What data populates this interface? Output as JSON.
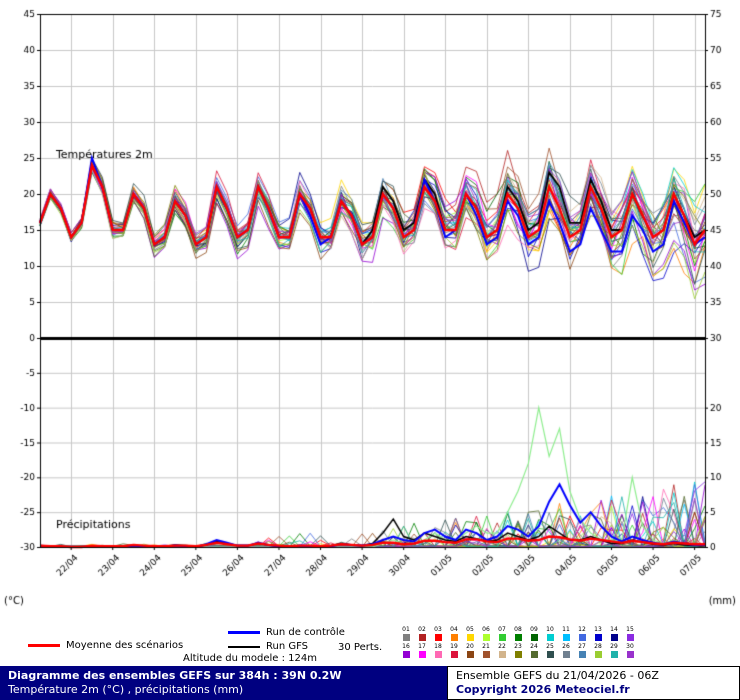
{
  "chart_data": {
    "type": "line",
    "panel_titles": {
      "top": "Températures 2m",
      "bottom": "Précipitations"
    },
    "x_dates": [
      "22/04",
      "23/04",
      "24/04",
      "25/04",
      "26/04",
      "27/04",
      "28/04",
      "29/04",
      "30/04",
      "01/05",
      "02/05",
      "03/05",
      "04/05",
      "05/05",
      "06/05",
      "07/05"
    ],
    "step_hours": 6,
    "temp_axis": {
      "unit": "(°C)",
      "left_ticks": [
        0,
        5,
        10,
        15,
        20,
        25,
        30,
        35,
        40,
        45
      ],
      "right_ticks": [
        30,
        35,
        40,
        45,
        50,
        55,
        60,
        65,
        70,
        75
      ],
      "ylim": [
        0,
        45
      ]
    },
    "precip_axis": {
      "unit": "(mm)",
      "left_ticks": [
        -5,
        -10,
        -15,
        -20,
        -25,
        -30
      ],
      "right_ticks": [
        0,
        5,
        10,
        15,
        20
      ],
      "ylim_mm": [
        0,
        30
      ]
    },
    "series": {
      "mean": {
        "label": "Moyenne des scénarios",
        "color": "#ff0000",
        "temp": [
          16,
          20,
          18,
          14,
          16,
          24,
          21,
          15,
          15,
          20,
          18,
          13,
          14,
          19,
          17,
          13,
          14,
          21,
          18,
          14,
          15,
          21,
          18,
          14,
          14,
          20,
          18,
          14,
          14,
          19,
          17,
          13,
          14,
          20,
          18,
          14,
          15,
          21,
          19,
          15,
          15,
          20,
          18,
          14,
          15,
          20,
          18,
          14,
          15,
          21,
          18,
          14,
          15,
          21,
          18,
          14,
          15,
          20,
          17,
          14,
          15,
          20,
          17,
          13,
          15
        ],
        "precip": [
          0.2,
          0.1,
          0.1,
          0,
          0,
          0.2,
          0.1,
          0.1,
          0.1,
          0.3,
          0.2,
          0.1,
          0.1,
          0.2,
          0.2,
          0.1,
          0.3,
          0.6,
          0.4,
          0.2,
          0.2,
          0.5,
          0.3,
          0.2,
          0.1,
          0.2,
          0.2,
          0.1,
          0.2,
          0.4,
          0.3,
          0.2,
          0.3,
          0.6,
          0.6,
          0.4,
          0.5,
          0.9,
          0.9,
          0.7,
          0.6,
          1.1,
          1.1,
          0.8,
          0.7,
          1.2,
          1.2,
          0.9,
          1,
          1.5,
          1.4,
          1.1,
          0.9,
          1.2,
          1,
          0.8,
          0.6,
          0.9,
          0.7,
          0.5,
          0.4,
          0.6,
          0.5,
          0.4,
          0.4
        ]
      },
      "control": {
        "label": "Run de contrôle",
        "color": "#0000ff",
        "temp": [
          16,
          20,
          18,
          14,
          16,
          25,
          21,
          15,
          15,
          20,
          18,
          13,
          14,
          19,
          17,
          13,
          14,
          21,
          18,
          14,
          15,
          21,
          18,
          14,
          14,
          20,
          17,
          13,
          14,
          19,
          17,
          13,
          14,
          20,
          18,
          14,
          15,
          22,
          19,
          14,
          15,
          20,
          17,
          13,
          14,
          19,
          17,
          13,
          14,
          19,
          16,
          12,
          13,
          18,
          15,
          12,
          12,
          17,
          15,
          12,
          13,
          19,
          16,
          13,
          14
        ],
        "precip": [
          0,
          0,
          0,
          0,
          0,
          0.1,
          0,
          0,
          0,
          0.2,
          0.1,
          0,
          0,
          0.2,
          0.1,
          0,
          0.4,
          1,
          0.6,
          0.2,
          0.2,
          0.6,
          0.3,
          0.1,
          0,
          0.2,
          0.1,
          0,
          0.1,
          0.4,
          0.3,
          0.2,
          0.4,
          1,
          1.5,
          1,
          0.8,
          2,
          2.5,
          1.5,
          1,
          2.5,
          2,
          1,
          1.5,
          3,
          2.5,
          1.5,
          3,
          6.5,
          9,
          6,
          3.5,
          5,
          3,
          1.5,
          0.8,
          1.5,
          1,
          0.6,
          0.4,
          0.8,
          0.5,
          0.3,
          0.3
        ]
      },
      "gfs": {
        "label": "Run GFS",
        "color": "#000000",
        "temp": [
          16,
          20,
          18,
          14,
          16,
          24,
          21,
          15,
          15,
          20,
          18,
          13,
          14,
          19,
          17,
          13,
          14,
          21,
          18,
          14,
          15,
          21,
          18,
          14,
          14,
          20,
          18,
          14,
          14,
          19,
          17,
          13,
          15,
          21,
          19,
          15,
          16,
          22,
          20,
          15,
          15,
          20,
          18,
          14,
          15,
          21,
          19,
          15,
          16,
          23,
          21,
          16,
          16,
          22,
          19,
          15,
          15,
          20,
          17,
          14,
          15,
          20,
          17,
          14,
          15
        ],
        "precip": [
          0,
          0,
          0,
          0,
          0,
          0.1,
          0,
          0,
          0,
          0.2,
          0.1,
          0,
          0.1,
          0.3,
          0.2,
          0.1,
          0.3,
          0.8,
          0.5,
          0.2,
          0.2,
          0.5,
          0.3,
          0.1,
          0.1,
          0.2,
          0.1,
          0,
          0.2,
          0.5,
          0.3,
          0.2,
          0.5,
          2,
          4,
          1.5,
          1,
          2,
          1.5,
          1,
          0.8,
          1.5,
          1.2,
          0.8,
          1,
          2,
          1.5,
          1,
          1.5,
          3,
          2,
          1,
          1,
          1.5,
          1,
          0.5,
          0.5,
          1,
          0.7,
          0.4,
          0.3,
          0.5,
          0.3,
          0.2,
          0.2
        ]
      },
      "highlight_precip": {
        "color": "#90ee90",
        "precip": [
          0,
          0,
          0,
          0,
          0,
          0,
          0,
          0,
          0,
          0,
          0,
          0,
          0,
          0,
          0,
          0,
          0,
          0,
          0,
          0,
          0,
          0,
          0,
          0,
          0,
          0,
          0,
          0,
          0,
          0,
          0,
          0,
          0,
          0.5,
          1,
          0.5,
          0.5,
          1,
          2,
          1,
          1,
          2,
          3,
          2,
          2,
          5,
          8,
          12,
          20,
          13,
          17,
          8,
          4,
          2,
          1,
          1,
          1,
          10,
          3,
          1,
          0.5,
          1,
          0.5,
          0.3,
          0.2
        ]
      }
    },
    "members": {
      "label": "30 Perts.",
      "count": 30,
      "seed": 42,
      "ids": [
        "01",
        "02",
        "03",
        "04",
        "05",
        "06",
        "07",
        "08",
        "09",
        "10",
        "11",
        "12",
        "13",
        "14",
        "15",
        "16",
        "17",
        "18",
        "19",
        "20",
        "21",
        "22",
        "23",
        "24",
        "25",
        "26",
        "27",
        "28",
        "29",
        "30"
      ],
      "colors": [
        "#808080",
        "#b22222",
        "#ff0000",
        "#ff7f00",
        "#ffd700",
        "#adff2f",
        "#32cd32",
        "#008000",
        "#006400",
        "#00ced1",
        "#00bfff",
        "#4169e1",
        "#0000cd",
        "#00008b",
        "#8a2be2",
        "#9400d3",
        "#ff00ff",
        "#ff69b4",
        "#dc143c",
        "#8b4513",
        "#a0522d",
        "#d2b48c",
        "#808000",
        "#556b2f",
        "#2f4f4f",
        "#708090",
        "#4682b4",
        "#9acd32",
        "#20b2aa",
        "#9932cc"
      ]
    }
  },
  "legend": {
    "altitude": "Altitude du modele : 124m"
  },
  "footer": {
    "bg_color": "#000080",
    "left_line1": "Diagramme des ensembles GEFS sur 384h : 39N 0.2W",
    "left_line2": "Température 2m (°C) , précipitations (mm)",
    "right_line1": "Ensemble GEFS du 21/04/2026 - 06Z",
    "right_line2": "Copyright 2026 Meteociel.fr"
  }
}
